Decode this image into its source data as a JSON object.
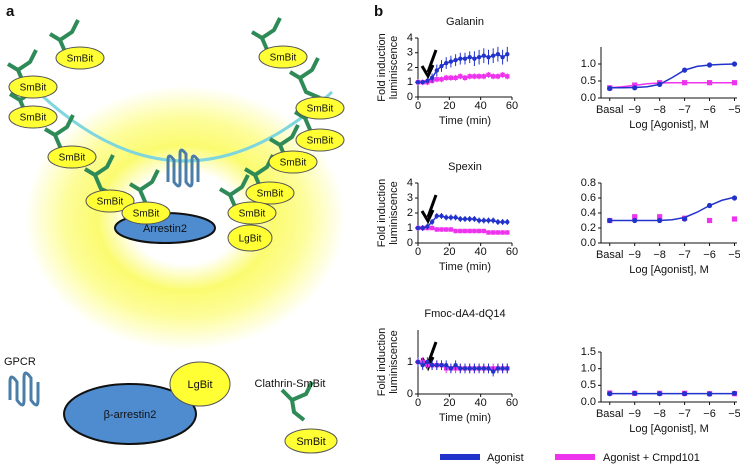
{
  "panel_labels": [
    "a",
    "b"
  ],
  "diagram": {
    "smbit_labels": [
      "SmBit",
      "SmBit",
      "SmBit",
      "SmBit",
      "SmBit",
      "SmBit",
      "SmBit",
      "SmBit",
      "SmBit",
      "SmBit",
      "SmBit",
      "SmBit"
    ],
    "complex_arrestin": "Arrestin2",
    "complex_lgbit": "LgBit",
    "legend_gpcr": "GPCR",
    "legend_arrestin": "β-arrestin2",
    "legend_lgbit": "LgBit",
    "legend_clathrin": "Clathrin-SmBit",
    "legend_smbit": "SmBit"
  },
  "chart_data": [
    {
      "type": "line",
      "title": "Galanin",
      "xlabel": "Time (min)",
      "ylabel": [
        "Fold induction",
        "luminiscence"
      ],
      "x": [
        0,
        3,
        6,
        9,
        12,
        15,
        18,
        21,
        24,
        27,
        30,
        33,
        36,
        39,
        42,
        45,
        48,
        51,
        54,
        57
      ],
      "xlim": [
        0,
        60
      ],
      "xticks": [
        0,
        20,
        40,
        60
      ],
      "ylim": [
        0,
        4
      ],
      "yticks": [
        0,
        1,
        2,
        3,
        4
      ],
      "series": [
        {
          "name": "Agonist",
          "color": "#2233cc",
          "marker": "circle",
          "values": [
            1.0,
            1.0,
            1.1,
            1.3,
            1.8,
            2.1,
            2.3,
            2.4,
            2.5,
            2.6,
            2.6,
            2.7,
            2.6,
            2.7,
            2.8,
            2.7,
            2.8,
            2.9,
            2.7,
            2.9
          ],
          "errors": [
            0.1,
            0.1,
            0.2,
            0.3,
            0.4,
            0.4,
            0.4,
            0.4,
            0.4,
            0.4,
            0.4,
            0.4,
            0.5,
            0.5,
            0.5,
            0.5,
            0.5,
            0.5,
            0.5,
            0.5
          ]
        },
        {
          "name": "Agonist + Cmpd101",
          "color": "#ee33ee",
          "marker": "square",
          "values": [
            1.0,
            1.0,
            1.0,
            1.1,
            1.2,
            1.2,
            1.3,
            1.3,
            1.3,
            1.4,
            1.3,
            1.4,
            1.4,
            1.4,
            1.4,
            1.5,
            1.4,
            1.4,
            1.5,
            1.4
          ],
          "errors": [
            0.2,
            0.2,
            0.2,
            0.2,
            0.2,
            0.2,
            0.2,
            0.2,
            0.2,
            0.2,
            0.2,
            0.2,
            0.2,
            0.2,
            0.2,
            0.2,
            0.2,
            0.2,
            0.2,
            0.2
          ]
        }
      ]
    },
    {
      "type": "scatter",
      "xlabel": "Log [Agonist], M",
      "x": [
        -10,
        -9,
        -8,
        -7,
        -6,
        -5
      ],
      "xlim": [
        -10.35,
        -4.9
      ],
      "xticks": [
        {
          "value": -10,
          "label": "Basal"
        },
        {
          "value": -9,
          "label": "−9"
        },
        {
          "value": -8,
          "label": "−8"
        },
        {
          "value": -7,
          "label": "−7"
        },
        {
          "value": -6,
          "label": "−6"
        },
        {
          "value": -5,
          "label": "−5"
        }
      ],
      "ylim": [
        0,
        1.5
      ],
      "yticks": [
        {
          "value": 0,
          "label": "0.0"
        },
        0.5,
        {
          "value": 1,
          "label": "1.0"
        }
      ],
      "series": [
        {
          "name": "Agonist",
          "color": "#2233cc",
          "marker": "circle",
          "values": [
            0.28,
            0.3,
            0.4,
            0.82,
            0.97,
            1.0
          ],
          "fit_x": [
            -10,
            -9.5,
            -9,
            -8.5,
            -8,
            -7.5,
            -7,
            -6.5,
            -6,
            -5.5,
            -5
          ],
          "fit_values": [
            0.3,
            0.3,
            0.31,
            0.33,
            0.4,
            0.6,
            0.82,
            0.93,
            0.97,
            0.99,
            1.0
          ]
        },
        {
          "name": "Agonist + Cmpd101",
          "color": "#ee33ee",
          "marker": "square",
          "values": [
            0.3,
            0.38,
            0.45,
            0.45,
            0.45,
            0.45
          ],
          "fit_x": [
            -10,
            -9.5,
            -9,
            -8.5,
            -8,
            -7.5,
            -7,
            -6.5,
            -6,
            -5.5,
            -5
          ],
          "fit_values": [
            0.3,
            0.33,
            0.37,
            0.42,
            0.44,
            0.45,
            0.45,
            0.45,
            0.45,
            0.45,
            0.45
          ]
        }
      ]
    },
    {
      "type": "line",
      "title": "Spexin",
      "xlabel": "Time (min)",
      "ylabel": [
        "Fold induction",
        "luminiscence"
      ],
      "x": [
        0,
        3,
        6,
        9,
        12,
        15,
        18,
        21,
        24,
        27,
        30,
        33,
        36,
        39,
        42,
        45,
        48,
        51,
        54,
        57
      ],
      "xlim": [
        0,
        60
      ],
      "xticks": [
        0,
        20,
        40,
        60
      ],
      "ylim": [
        0,
        4
      ],
      "yticks": [
        0,
        1,
        2,
        3,
        4
      ],
      "series": [
        {
          "name": "Agonist",
          "color": "#2233cc",
          "marker": "circle",
          "values": [
            1.0,
            1.0,
            1.1,
            1.4,
            1.8,
            1.8,
            1.7,
            1.7,
            1.7,
            1.6,
            1.6,
            1.6,
            1.6,
            1.5,
            1.5,
            1.5,
            1.5,
            1.4,
            1.4,
            1.4
          ],
          "errors": [
            0.2,
            0.2,
            0.2,
            0.2,
            0.2,
            0.2,
            0.2,
            0.2,
            0.2,
            0.2,
            0.2,
            0.2,
            0.2,
            0.2,
            0.2,
            0.2,
            0.2,
            0.2,
            0.2,
            0.2
          ]
        },
        {
          "name": "Agonist + Cmpd101",
          "color": "#ee33ee",
          "marker": "square",
          "values": [
            1.0,
            1.0,
            1.0,
            1.0,
            0.9,
            0.9,
            0.9,
            0.9,
            0.8,
            0.8,
            0.8,
            0.8,
            0.8,
            0.8,
            0.8,
            0.7,
            0.7,
            0.7,
            0.7,
            0.7
          ],
          "errors": [
            0.15,
            0.15,
            0.15,
            0.15,
            0.15,
            0.15,
            0.15,
            0.15,
            0.15,
            0.15,
            0.15,
            0.15,
            0.15,
            0.15,
            0.15,
            0.15,
            0.15,
            0.15,
            0.15,
            0.15
          ]
        }
      ]
    },
    {
      "type": "scatter",
      "xlabel": "Log [Agonist], M",
      "x": [
        -10,
        -9,
        -8,
        -7,
        -6,
        -5
      ],
      "xlim": [
        -10.35,
        -4.9
      ],
      "xticks": [
        {
          "value": -10,
          "label": "Basal"
        },
        {
          "value": -9,
          "label": "−9"
        },
        {
          "value": -8,
          "label": "−8"
        },
        {
          "value": -7,
          "label": "−7"
        },
        {
          "value": -6,
          "label": "−6"
        },
        {
          "value": -5,
          "label": "−5"
        }
      ],
      "ylim": [
        0,
        0.8
      ],
      "yticks": [
        {
          "value": 0,
          "label": "0.0"
        },
        0.2,
        0.4,
        0.6,
        0.8
      ],
      "series": [
        {
          "name": "Agonist",
          "color": "#2233cc",
          "marker": "circle",
          "values": [
            0.3,
            0.3,
            0.3,
            0.32,
            0.5,
            0.6
          ],
          "fit_x": [
            -10,
            -9.5,
            -9,
            -8.5,
            -8,
            -7.5,
            -7,
            -6.5,
            -6,
            -5.5,
            -5
          ],
          "fit_values": [
            0.3,
            0.3,
            0.3,
            0.3,
            0.3,
            0.31,
            0.34,
            0.41,
            0.5,
            0.57,
            0.61
          ]
        },
        {
          "name": "Agonist + Cmpd101",
          "color": "#ee33ee",
          "marker": "square",
          "values": [
            0.3,
            0.35,
            0.35,
            0.33,
            0.3,
            0.32
          ]
        }
      ]
    },
    {
      "type": "line",
      "title": "Fmoc-dA4-dQ14",
      "xlabel": "Time (min)",
      "ylabel": [
        "Fold induction",
        "luminiscence"
      ],
      "x": [
        0,
        3,
        6,
        9,
        12,
        15,
        18,
        21,
        24,
        27,
        30,
        33,
        36,
        39,
        42,
        45,
        48,
        51,
        54,
        57
      ],
      "xlim": [
        0,
        60
      ],
      "xticks": [
        0,
        20,
        40,
        60
      ],
      "ylim": [
        0,
        2
      ],
      "yticks": [
        0,
        1
      ],
      "series": [
        {
          "name": "Agonist",
          "color": "#2233cc",
          "marker": "circle",
          "values": [
            1.0,
            0.9,
            1.0,
            0.9,
            0.9,
            0.9,
            0.9,
            0.8,
            0.9,
            0.8,
            0.8,
            0.8,
            0.8,
            0.8,
            0.8,
            0.8,
            0.7,
            0.8,
            0.8,
            0.8
          ],
          "errors": [
            0.15,
            0.15,
            0.15,
            0.15,
            0.15,
            0.15,
            0.15,
            0.15,
            0.15,
            0.15,
            0.15,
            0.15,
            0.15,
            0.15,
            0.15,
            0.15,
            0.15,
            0.15,
            0.15,
            0.15
          ]
        },
        {
          "name": "Agonist + Cmpd101",
          "color": "#ee33ee",
          "marker": "square",
          "values": [
            1.0,
            1.0,
            0.9,
            0.9,
            0.9,
            0.9,
            0.8,
            0.8,
            0.8,
            0.8,
            0.8,
            0.8,
            0.8,
            0.8,
            0.8,
            0.8,
            0.8,
            0.8,
            0.8,
            0.8
          ],
          "errors": [
            0.15,
            0.15,
            0.15,
            0.15,
            0.15,
            0.15,
            0.15,
            0.15,
            0.15,
            0.15,
            0.15,
            0.15,
            0.15,
            0.15,
            0.15,
            0.15,
            0.15,
            0.15,
            0.15,
            0.15
          ]
        }
      ]
    },
    {
      "type": "scatter",
      "xlabel": "Log [Agonist], M",
      "x": [
        -10,
        -9,
        -8,
        -7,
        -6,
        -5
      ],
      "xlim": [
        -10.35,
        -4.9
      ],
      "xticks": [
        {
          "value": -10,
          "label": "Basal"
        },
        {
          "value": -9,
          "label": "−9"
        },
        {
          "value": -8,
          "label": "−8"
        },
        {
          "value": -7,
          "label": "−7"
        },
        {
          "value": -6,
          "label": "−6"
        },
        {
          "value": -5,
          "label": "−5"
        }
      ],
      "ylim": [
        0,
        1.5
      ],
      "yticks": [
        {
          "value": 0,
          "label": "0.0"
        },
        0.5,
        {
          "value": 1,
          "label": "1.0"
        },
        1.5
      ],
      "series": [
        {
          "name": "Agonist",
          "color": "#2233cc",
          "marker": "circle",
          "values": [
            0.25,
            0.26,
            0.25,
            0.25,
            0.24,
            0.26
          ],
          "fit_x": [
            -10,
            -9,
            -8,
            -7,
            -6,
            -5
          ],
          "fit_values": [
            0.25,
            0.25,
            0.25,
            0.25,
            0.25,
            0.25
          ]
        },
        {
          "name": "Agonist + Cmpd101",
          "color": "#ee33ee",
          "marker": "square",
          "values": [
            0.27,
            0.26,
            0.26,
            0.26,
            0.25,
            0.25
          ]
        }
      ]
    }
  ]
}
